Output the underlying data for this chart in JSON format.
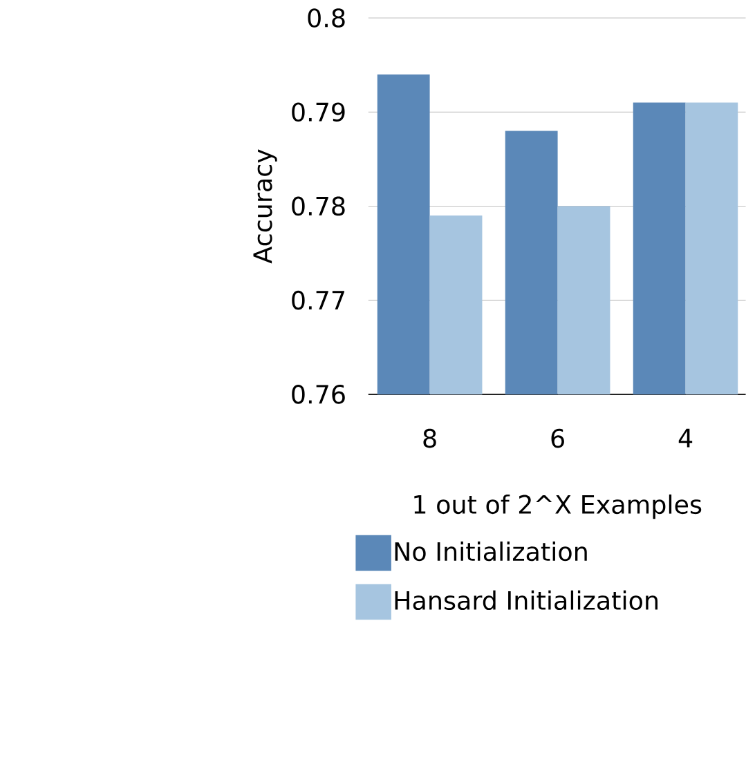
{
  "chart_data": {
    "type": "bar",
    "xlabel": "1 out of 2^X Examples",
    "ylabel": "Accuracy",
    "categories": [
      "8",
      "6",
      "4"
    ],
    "series": [
      {
        "name": "No Initialization",
        "color": "#5b88b8",
        "values": [
          0.794,
          0.788,
          0.791
        ]
      },
      {
        "name": "Hansard Initialization",
        "color": "#a6c5e0",
        "values": [
          0.779,
          0.78,
          0.791
        ]
      }
    ],
    "ylim": [
      0.76,
      0.8
    ],
    "yticks": [
      0.76,
      0.77,
      0.78,
      0.79,
      0.8
    ],
    "grid": "y",
    "legend": "bottom"
  }
}
